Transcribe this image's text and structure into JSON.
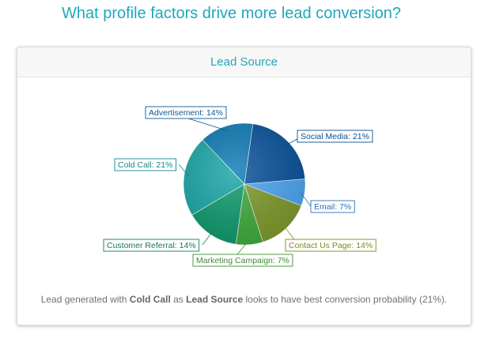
{
  "page": {
    "title": "What profile factors drive more lead conversion?"
  },
  "card": {
    "header": "Lead Source"
  },
  "insight": {
    "prefix": "Lead generated with ",
    "value": "Cold Call",
    "middle": " as ",
    "field": "Lead Source",
    "suffix": " looks to have best conversion probability (21%)."
  },
  "chart_data": {
    "type": "pie",
    "title": "Lead Source",
    "slices": [
      {
        "label": "Social Media:",
        "value": 21,
        "display": "21%",
        "color": "#0a539b",
        "label_color": "#0a4f8f"
      },
      {
        "label": "Email:",
        "value": 7,
        "display": "7%",
        "color": "#4da6f2",
        "label_color": "#2f6fb5"
      },
      {
        "label": "Contact Us Page:",
        "value": 14,
        "display": "14%",
        "color": "#7f9a2c",
        "label_color": "#7c8b1f"
      },
      {
        "label": "Marketing Campaign:",
        "value": 7,
        "display": "7%",
        "color": "#3fab3d",
        "label_color": "#3b8e2f"
      },
      {
        "label": "Customer Referral:",
        "value": 14,
        "display": "14%",
        "color": "#0f9a6e",
        "label_color": "#137a57"
      },
      {
        "label": "Cold Call:",
        "value": 21,
        "display": "21%",
        "color": "#1aa6a6",
        "label_color": "#14888c"
      },
      {
        "label": "Advertisement:",
        "value": 14,
        "display": "14%",
        "color": "#0f7bb5",
        "label_color": "#10588f"
      }
    ]
  }
}
